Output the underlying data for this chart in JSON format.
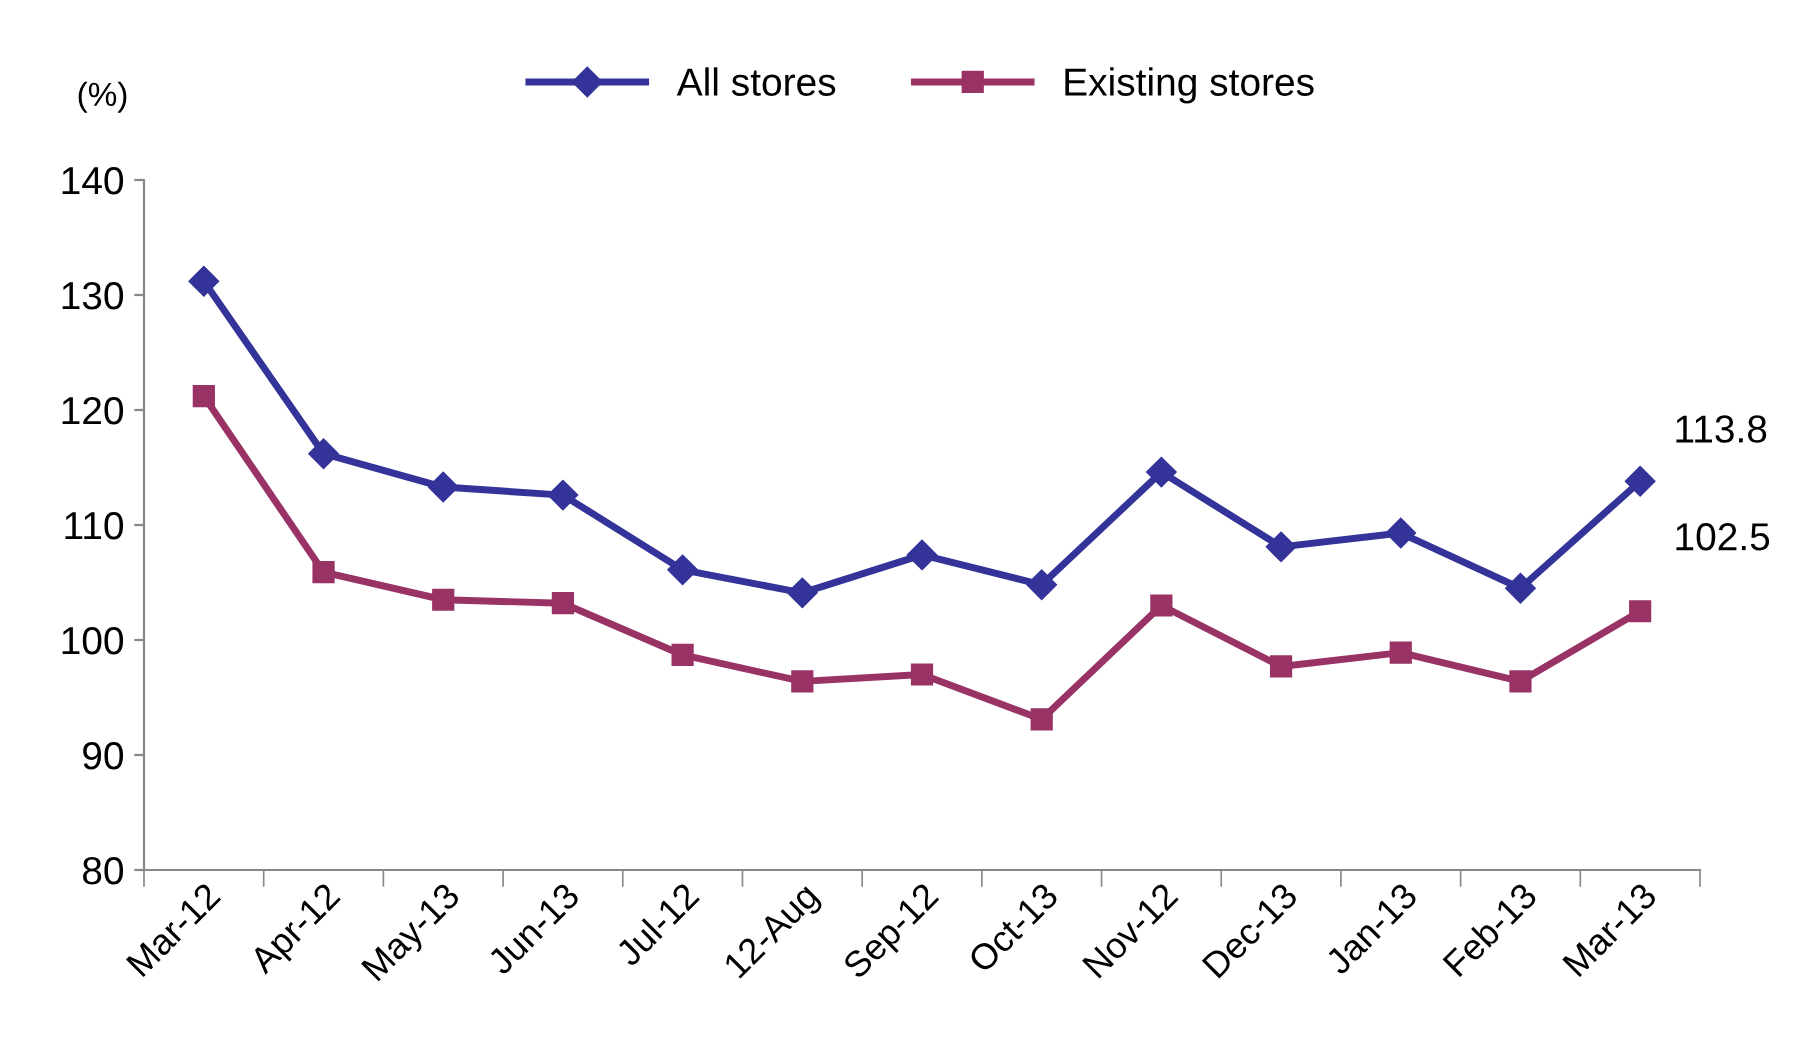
{
  "chart_data": {
    "type": "line",
    "ylabel": "(%)",
    "categories": [
      "Mar-12",
      "Apr-12",
      "May-13",
      "Jun-13",
      "Jul-12",
      "12-Aug",
      "Sep-12",
      "Oct-13",
      "Nov-12",
      "Dec-13",
      "Jan-13",
      "Feb-13",
      "Mar-13"
    ],
    "series": [
      {
        "name": "All stores",
        "color": "#333399",
        "marker": "diamond",
        "values": [
          131.2,
          116.2,
          113.3,
          112.6,
          106.1,
          104.1,
          107.4,
          104.8,
          114.6,
          108.1,
          109.3,
          104.5,
          113.8
        ]
      },
      {
        "name": "Existing stores",
        "color": "#993366",
        "marker": "square",
        "values": [
          121.2,
          105.9,
          103.5,
          103.2,
          98.7,
          96.4,
          97.0,
          93.1,
          103.0,
          97.7,
          98.9,
          96.4,
          102.5
        ]
      }
    ],
    "annotations": [
      {
        "text": "113.8",
        "x": "Mar-13",
        "y": 113.8
      },
      {
        "text": "102.5",
        "x": "Mar-13",
        "y": 102.5
      }
    ],
    "ylim": [
      80,
      140
    ],
    "yticks": [
      80,
      90,
      100,
      110,
      120,
      130,
      140
    ],
    "grid": false,
    "legend": "top",
    "line_style": "solid"
  }
}
